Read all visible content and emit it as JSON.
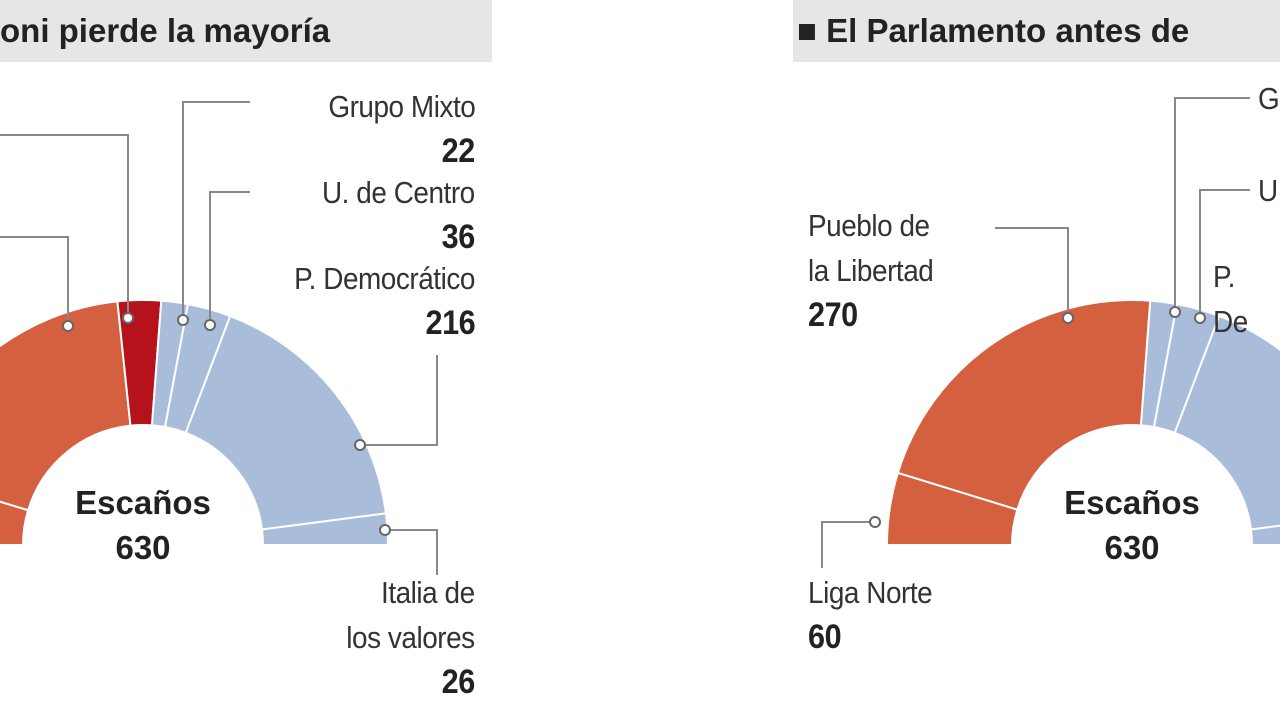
{
  "chart_data": [
    {
      "type": "semicircle",
      "title": "oni pierde la mayoría",
      "center_label": "Escaños",
      "total": 630,
      "categories": [
        null,
        null,
        null,
        "Grupo Mixto",
        "U. de Centro",
        "P. Democrático",
        "Italia de\nlos valores"
      ],
      "values": [
        59,
        235,
        36,
        22,
        36,
        216,
        26
      ],
      "colors": [
        "#d4603f",
        "#d4603f",
        "#b5121b",
        "#a9bcd9",
        "#a9bcd9",
        "#a9bcd9",
        "#a9bcd9"
      ]
    },
    {
      "type": "semicircle",
      "title": "■ El Parlamento antes de",
      "center_label": "Escaños",
      "total": 630,
      "categories": [
        "Liga Norte",
        "Pueblo de\nla Libertad",
        "G",
        "U",
        "P. De",
        null
      ],
      "values": [
        60,
        270,
        22,
        36,
        216,
        26
      ],
      "colors": [
        "#d4603f",
        "#d4603f",
        "#a9bcd9",
        "#a9bcd9",
        "#a9bcd9",
        "#a9bcd9"
      ]
    }
  ]
}
